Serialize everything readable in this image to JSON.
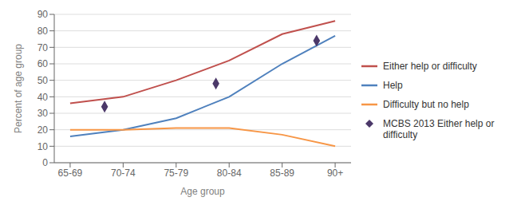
{
  "chart_data": {
    "type": "line",
    "xlabel": "Age group",
    "ylabel": "Percent of age group",
    "x": [
      0,
      1,
      2,
      3,
      4,
      5
    ],
    "xlim": [
      -0.3,
      5.3
    ],
    "xticks": [
      {
        "value": 0,
        "label": "65-69"
      },
      {
        "value": 1,
        "label": "70-74"
      },
      {
        "value": 2,
        "label": "75-79"
      },
      {
        "value": 3,
        "label": "80-84"
      },
      {
        "value": 4,
        "label": "85-89"
      },
      {
        "value": 5,
        "label": "90+"
      }
    ],
    "ylim": [
      0,
      90
    ],
    "yticks": [
      0,
      10,
      20,
      30,
      40,
      50,
      60,
      70,
      80,
      90
    ],
    "grid": "y",
    "legend": "right",
    "series": [
      {
        "name": "Either help or difficulty",
        "color": "#c0504d",
        "values": [
          36,
          40,
          50,
          62,
          78,
          86
        ]
      },
      {
        "name": "Help",
        "color": "#4f81bd",
        "values": [
          16,
          20,
          27,
          40,
          60,
          77
        ]
      },
      {
        "name": "Difficulty but no help",
        "color": "#f79646",
        "values": [
          20,
          20,
          21,
          21,
          17,
          10
        ]
      },
      {
        "name": "MCBS 2013 Either help or\ndifficulty",
        "type": "scatter",
        "marker": "diamond",
        "color": "#4b3869",
        "x": [
          0.65,
          2.75,
          4.65
        ],
        "values": [
          34,
          48,
          74
        ]
      }
    ]
  }
}
